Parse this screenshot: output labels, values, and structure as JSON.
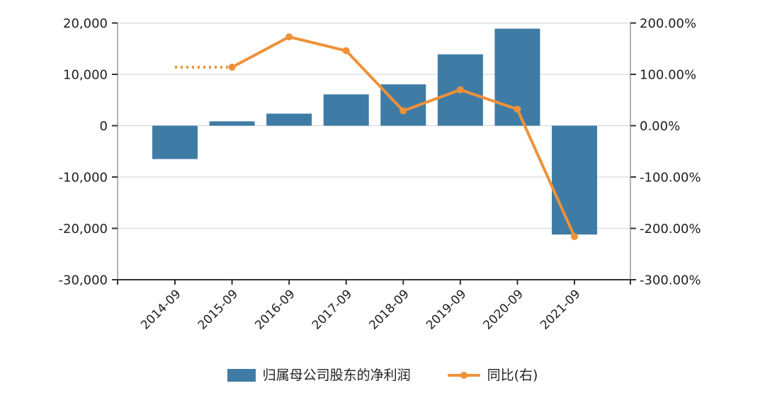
{
  "chart_data": {
    "type": "combo-bar-line",
    "categories": [
      "2014-09",
      "2015-09",
      "2016-09",
      "2017-09",
      "2018-09",
      "2019-09",
      "2020-09",
      "2021-09"
    ],
    "series": [
      {
        "name": "归属母公司股东的净利润",
        "type": "bar",
        "y_axis": "left",
        "color": "#3E7CA6",
        "values": [
          -6500,
          850,
          2350,
          6100,
          8050,
          13900,
          18900,
          -21200
        ]
      },
      {
        "name": "同比(右)",
        "type": "line",
        "y_axis": "right",
        "color": "#EF9138",
        "values": [
          114,
          114,
          173,
          146,
          29,
          70,
          32,
          -216
        ],
        "dotted_first_segment": true,
        "markers_from_index": 1
      }
    ],
    "left_axis": {
      "min": -30000,
      "max": 20000,
      "tick_values": [
        20000,
        10000,
        0,
        -10000,
        -20000,
        -30000
      ],
      "tick_labels": [
        "20,000",
        "10,000",
        "0",
        "-10,000",
        "-20,000",
        "-30,000"
      ]
    },
    "right_axis": {
      "min": -300,
      "max": 200,
      "tick_values": [
        200,
        100,
        0,
        -100,
        -200,
        -300
      ],
      "tick_labels": [
        "200.00%",
        "100.00%",
        "0.00%",
        "-100.00%",
        "-200.00%",
        "-300.00%"
      ]
    },
    "grid": true,
    "legend_position": "bottom",
    "colors": {
      "background": "#ffffff",
      "grid": "#d9d9d9",
      "axis_side": "#9a9a9a",
      "axis_bottom": "#333333",
      "tick": "#333333",
      "label": "#1f1f1f"
    }
  },
  "legend": {
    "items": [
      {
        "label": "归属母公司股东的净利润",
        "swatch_color": "#3E7CA6",
        "marker": "bar-swatch"
      },
      {
        "label": "同比(右)",
        "swatch_color": "#EF9138",
        "marker": "line-with-dot"
      }
    ]
  }
}
